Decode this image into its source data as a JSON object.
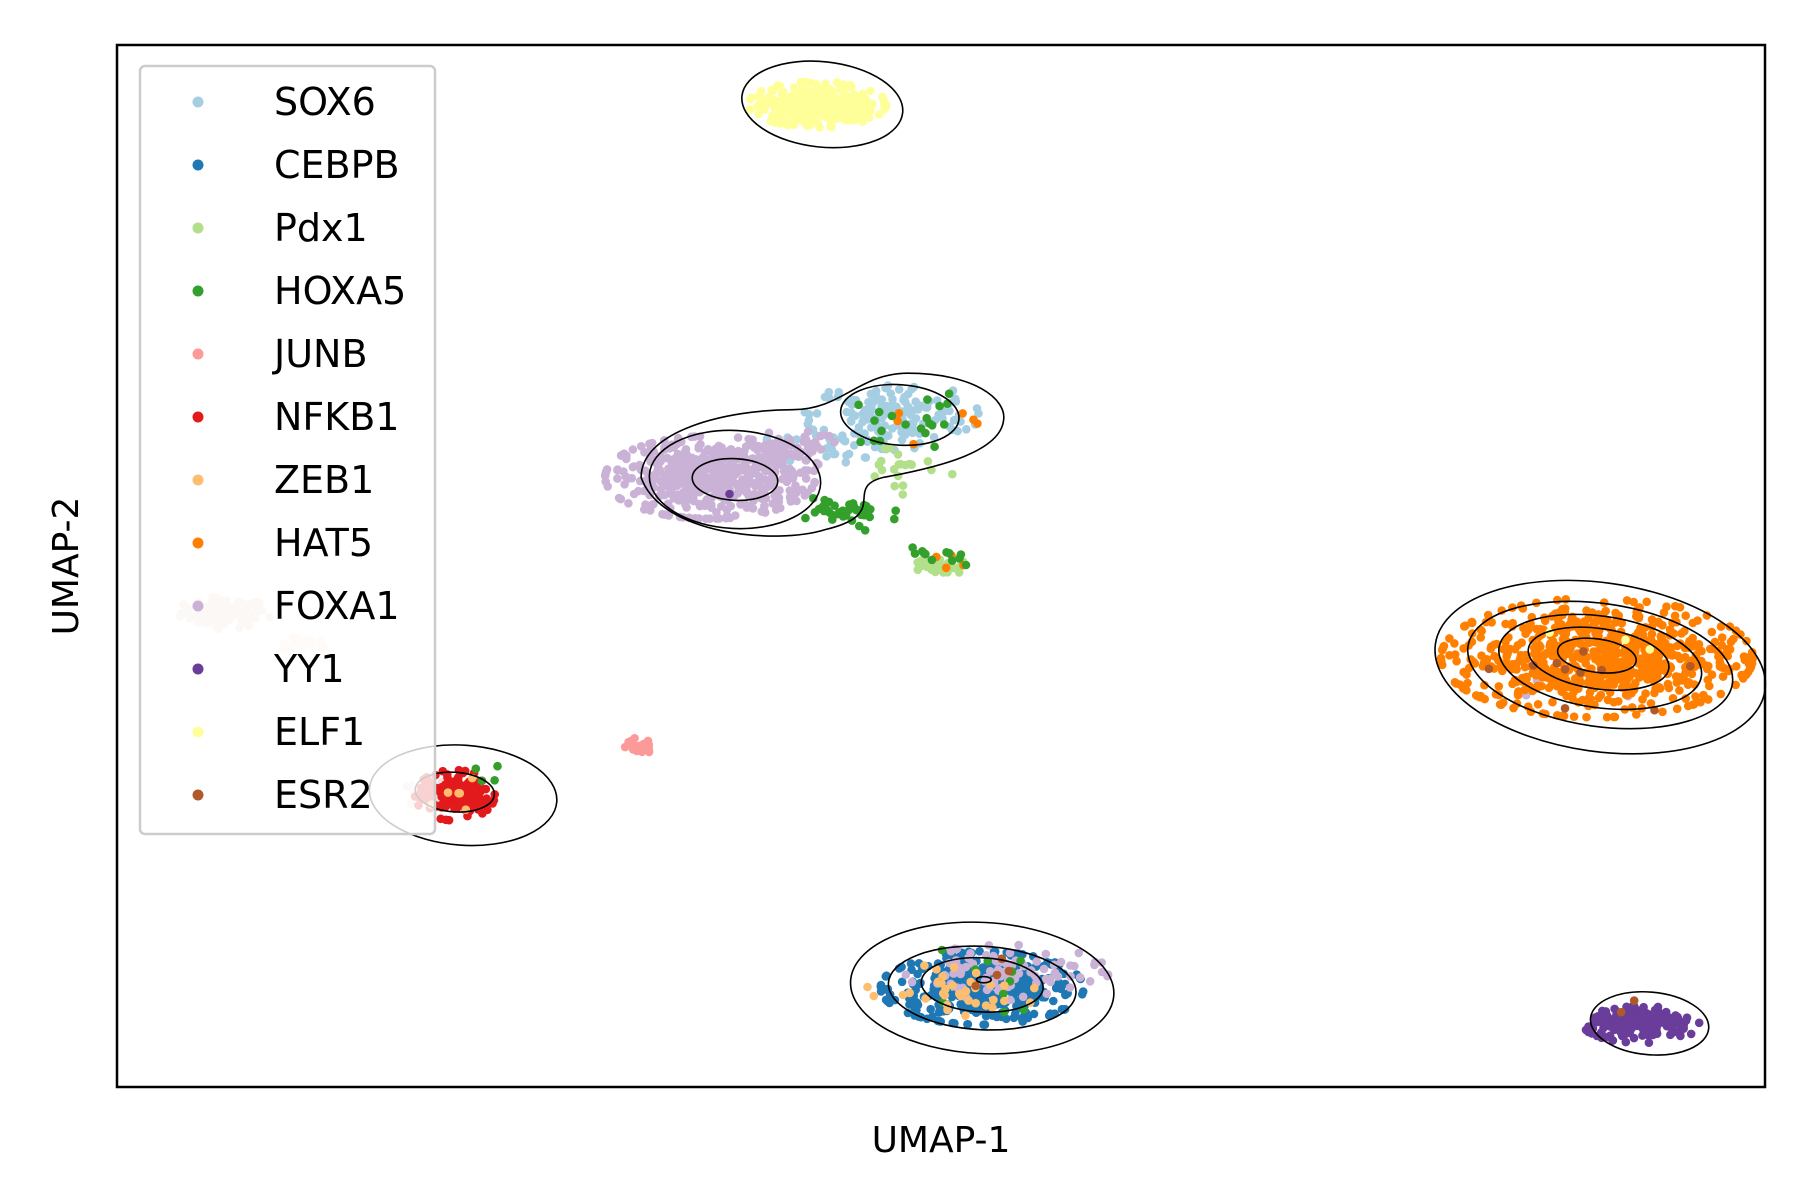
{
  "chart_data": {
    "type": "scatter",
    "title": "",
    "xlabel": "UMAP-1",
    "ylabel": "UMAP-2",
    "xlim": [
      0,
      100
    ],
    "ylim": [
      0,
      100
    ],
    "xticks": false,
    "yticks": false,
    "grid": false,
    "legend_position": "upper-left",
    "contour_color": "#000000",
    "series": [
      {
        "name": "SOX6",
        "color": "#a6cee3",
        "clusters": [
          {
            "cx": 47.0,
            "cy": 64.5,
            "sx": 2.4,
            "sy": 1.5,
            "n": 160
          },
          {
            "cx": 43.5,
            "cy": 61.5,
            "sx": 2.0,
            "sy": 0.8,
            "n": 30
          }
        ]
      },
      {
        "name": "CEBPB",
        "color": "#1f78b4",
        "clusters": [
          {
            "cx": 52.5,
            "cy": 9.5,
            "sx": 2.8,
            "sy": 1.6,
            "n": 420
          }
        ]
      },
      {
        "name": "Pdx1",
        "color": "#b2df8a",
        "clusters": [
          {
            "cx": 50.0,
            "cy": 50.0,
            "sx": 0.7,
            "sy": 0.4,
            "n": 40
          },
          {
            "cx": 47.5,
            "cy": 59.5,
            "sx": 1.5,
            "sy": 1.2,
            "n": 20
          }
        ]
      },
      {
        "name": "HOXA5",
        "color": "#33a02c",
        "clusters": [
          {
            "cx": 44.0,
            "cy": 55.0,
            "sx": 1.5,
            "sy": 0.8,
            "n": 40
          },
          {
            "cx": 50.0,
            "cy": 51.0,
            "sx": 1.0,
            "sy": 0.6,
            "n": 12
          },
          {
            "cx": 48.0,
            "cy": 64.0,
            "sx": 2.0,
            "sy": 1.4,
            "n": 20
          },
          {
            "cx": 53.0,
            "cy": 10.0,
            "sx": 3.0,
            "sy": 1.6,
            "n": 10
          },
          {
            "cx": 22.0,
            "cy": 29.5,
            "sx": 0.8,
            "sy": 0.8,
            "n": 4
          }
        ]
      },
      {
        "name": "JUNB",
        "color": "#fb9a99",
        "clusters": [
          {
            "cx": 31.5,
            "cy": 32.7,
            "sx": 0.5,
            "sy": 0.35,
            "n": 25
          }
        ]
      },
      {
        "name": "NFKB1",
        "color": "#e31a1c",
        "clusters": [
          {
            "cx": 20.5,
            "cy": 28.0,
            "sx": 1.1,
            "sy": 1.1,
            "n": 170
          }
        ]
      },
      {
        "name": "ZEB1",
        "color": "#fdbf6f",
        "clusters": [
          {
            "cx": 51.0,
            "cy": 10.0,
            "sx": 2.5,
            "sy": 1.5,
            "n": 35
          },
          {
            "cx": 20.5,
            "cy": 28.5,
            "sx": 1.0,
            "sy": 0.9,
            "n": 6
          }
        ]
      },
      {
        "name": "HAT5",
        "color": "#ff7f00",
        "clusters": [
          {
            "cx": 89.8,
            "cy": 41.2,
            "sx": 4.3,
            "sy": 2.6,
            "n": 720
          },
          {
            "cx": 48.0,
            "cy": 64.5,
            "sx": 2.0,
            "sy": 1.3,
            "n": 6
          },
          {
            "cx": 50.0,
            "cy": 50.5,
            "sx": 1.0,
            "sy": 0.5,
            "n": 4
          }
        ]
      },
      {
        "name": "FOXA1",
        "color": "#cab2d6",
        "clusters": [
          {
            "cx": 36.0,
            "cy": 58.5,
            "sx": 2.9,
            "sy": 1.8,
            "n": 520
          },
          {
            "cx": 41.0,
            "cy": 61.0,
            "sx": 1.5,
            "sy": 0.9,
            "n": 60
          },
          {
            "cx": 54.0,
            "cy": 11.0,
            "sx": 2.8,
            "sy": 1.2,
            "n": 90
          },
          {
            "cx": 89.5,
            "cy": 40.5,
            "sx": 3.0,
            "sy": 2.0,
            "n": 8
          }
        ]
      },
      {
        "name": "YY1",
        "color": "#6a3d9a",
        "clusters": [
          {
            "cx": 92.5,
            "cy": 6.0,
            "sx": 1.6,
            "sy": 0.8,
            "n": 180
          },
          {
            "cx": 37.0,
            "cy": 57.0,
            "sx": 0.3,
            "sy": 0.3,
            "n": 1
          }
        ]
      },
      {
        "name": "ELF1",
        "color": "#ffff99",
        "clusters": [
          {
            "cx": 42.5,
            "cy": 94.3,
            "sx": 1.9,
            "sy": 1.0,
            "n": 300
          },
          {
            "cx": 89.5,
            "cy": 42.0,
            "sx": 2.0,
            "sy": 1.2,
            "n": 3
          }
        ]
      },
      {
        "name": "ESR2",
        "color": "#b15928",
        "clusters": [
          {
            "cx": 89.0,
            "cy": 39.5,
            "sx": 3.0,
            "sy": 2.0,
            "n": 10
          },
          {
            "cx": 53.0,
            "cy": 11.0,
            "sx": 1.5,
            "sy": 0.8,
            "n": 4
          },
          {
            "cx": 92.5,
            "cy": 7.0,
            "sx": 1.0,
            "sy": 0.6,
            "n": 2
          }
        ]
      }
    ],
    "faint_clusters": [
      {
        "color": "#eddccf",
        "cx": 6.5,
        "cy": 45.5,
        "sx": 1.3,
        "sy": 0.7,
        "n": 90
      },
      {
        "color": "#f8ead9",
        "cx": 11.5,
        "cy": 42.5,
        "sx": 0.8,
        "sy": 0.35,
        "n": 20
      },
      {
        "color": "#f2dede",
        "cx": 18.8,
        "cy": 28.2,
        "sx": 0.6,
        "sy": 0.7,
        "n": 20
      }
    ],
    "density_contours": [
      {
        "kind": "ellipse",
        "cx": 42.8,
        "cy": 94.3,
        "rx": 4.9,
        "ry": 4.1,
        "rot": 6
      },
      {
        "kind": "ellipse",
        "cx": 37.5,
        "cy": 58.3,
        "rx": 5.2,
        "ry": 4.7,
        "rot": 3
      },
      {
        "kind": "ellipse",
        "cx": 37.5,
        "cy": 58.3,
        "rx": 2.6,
        "ry": 2.0,
        "rot": 3
      },
      {
        "kind": "ellipse",
        "cx": 47.5,
        "cy": 64.5,
        "rx": 3.6,
        "ry": 2.9,
        "rot": 4
      },
      {
        "kind": "ellipse",
        "cx": 90.0,
        "cy": 40.3,
        "rx": 10.1,
        "ry": 8.1,
        "rot": 8
      },
      {
        "kind": "ellipse",
        "cx": 90.0,
        "cy": 40.5,
        "rx": 8.1,
        "ry": 5.9,
        "rot": 8
      },
      {
        "kind": "ellipse",
        "cx": 90.0,
        "cy": 40.8,
        "rx": 6.2,
        "ry": 4.4,
        "rot": 8
      },
      {
        "kind": "ellipse",
        "cx": 89.9,
        "cy": 41.1,
        "rx": 4.3,
        "ry": 2.9,
        "rot": 8
      },
      {
        "kind": "ellipse",
        "cx": 89.8,
        "cy": 41.4,
        "rx": 2.4,
        "ry": 1.6,
        "rot": 8
      },
      {
        "kind": "ellipse",
        "cx": 52.5,
        "cy": 9.5,
        "rx": 8.0,
        "ry": 6.3,
        "rot": 3
      },
      {
        "kind": "ellipse",
        "cx": 52.5,
        "cy": 9.5,
        "rx": 5.7,
        "ry": 4.0,
        "rot": 3
      },
      {
        "kind": "ellipse",
        "cx": 52.5,
        "cy": 9.8,
        "rx": 3.7,
        "ry": 2.6,
        "rot": 3
      },
      {
        "kind": "ellipse",
        "cx": 52.6,
        "cy": 10.3,
        "rx": 0.45,
        "ry": 0.3,
        "rot": 0
      },
      {
        "kind": "ellipse",
        "cx": 93.0,
        "cy": 6.1,
        "rx": 3.6,
        "ry": 3.0,
        "rot": 5
      },
      {
        "kind": "ellipse",
        "cx": 21.0,
        "cy": 28.0,
        "rx": 5.7,
        "ry": 4.8,
        "rot": 4
      },
      {
        "kind": "ellipse",
        "cx": 20.5,
        "cy": 28.3,
        "rx": 2.4,
        "ry": 1.9,
        "rot": 4
      },
      {
        "kind": "peanut"
      }
    ]
  }
}
